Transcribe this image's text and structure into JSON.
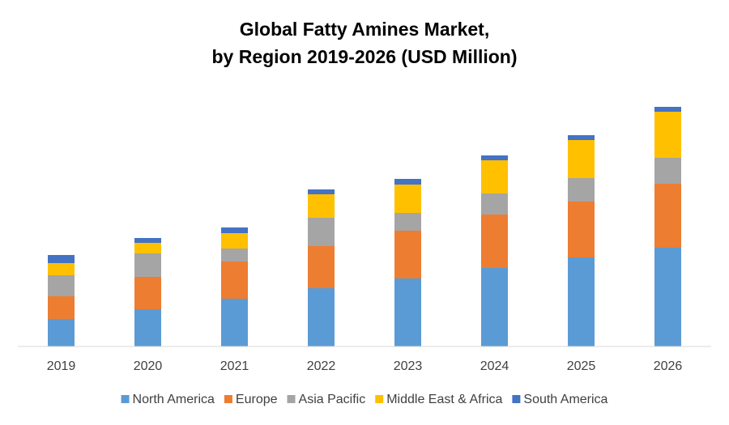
{
  "chart_data": {
    "type": "stacked_bar",
    "title": [
      "Global Fatty Amines Market,",
      "by Region 2019-2026 (USD Million)"
    ],
    "categories": [
      "2019",
      "2020",
      "2021",
      "2022",
      "2023",
      "2024",
      "2025",
      "2026"
    ],
    "series": [
      {
        "name": "North America",
        "color": "#5b9bd5",
        "values": [
          34,
          46,
          59,
          72,
          84,
          97,
          110,
          122
        ]
      },
      {
        "name": "Europe",
        "color": "#ed7d31",
        "values": [
          28,
          40,
          46,
          52,
          59,
          66,
          69,
          79
        ]
      },
      {
        "name": "Asia Pacific",
        "color": "#a5a5a5",
        "values": [
          26,
          29,
          16,
          35,
          22,
          26,
          29,
          32
        ]
      },
      {
        "name": "Middle East & Africa",
        "color": "#ffc000",
        "values": [
          15,
          13,
          19,
          29,
          35,
          41,
          47,
          57
        ]
      },
      {
        "name": "South America",
        "color": "#4472c4",
        "values": [
          10,
          6,
          7,
          6,
          7,
          6,
          6,
          6
        ]
      }
    ],
    "ylim": [
      0,
      300
    ],
    "legend": "bottom"
  }
}
